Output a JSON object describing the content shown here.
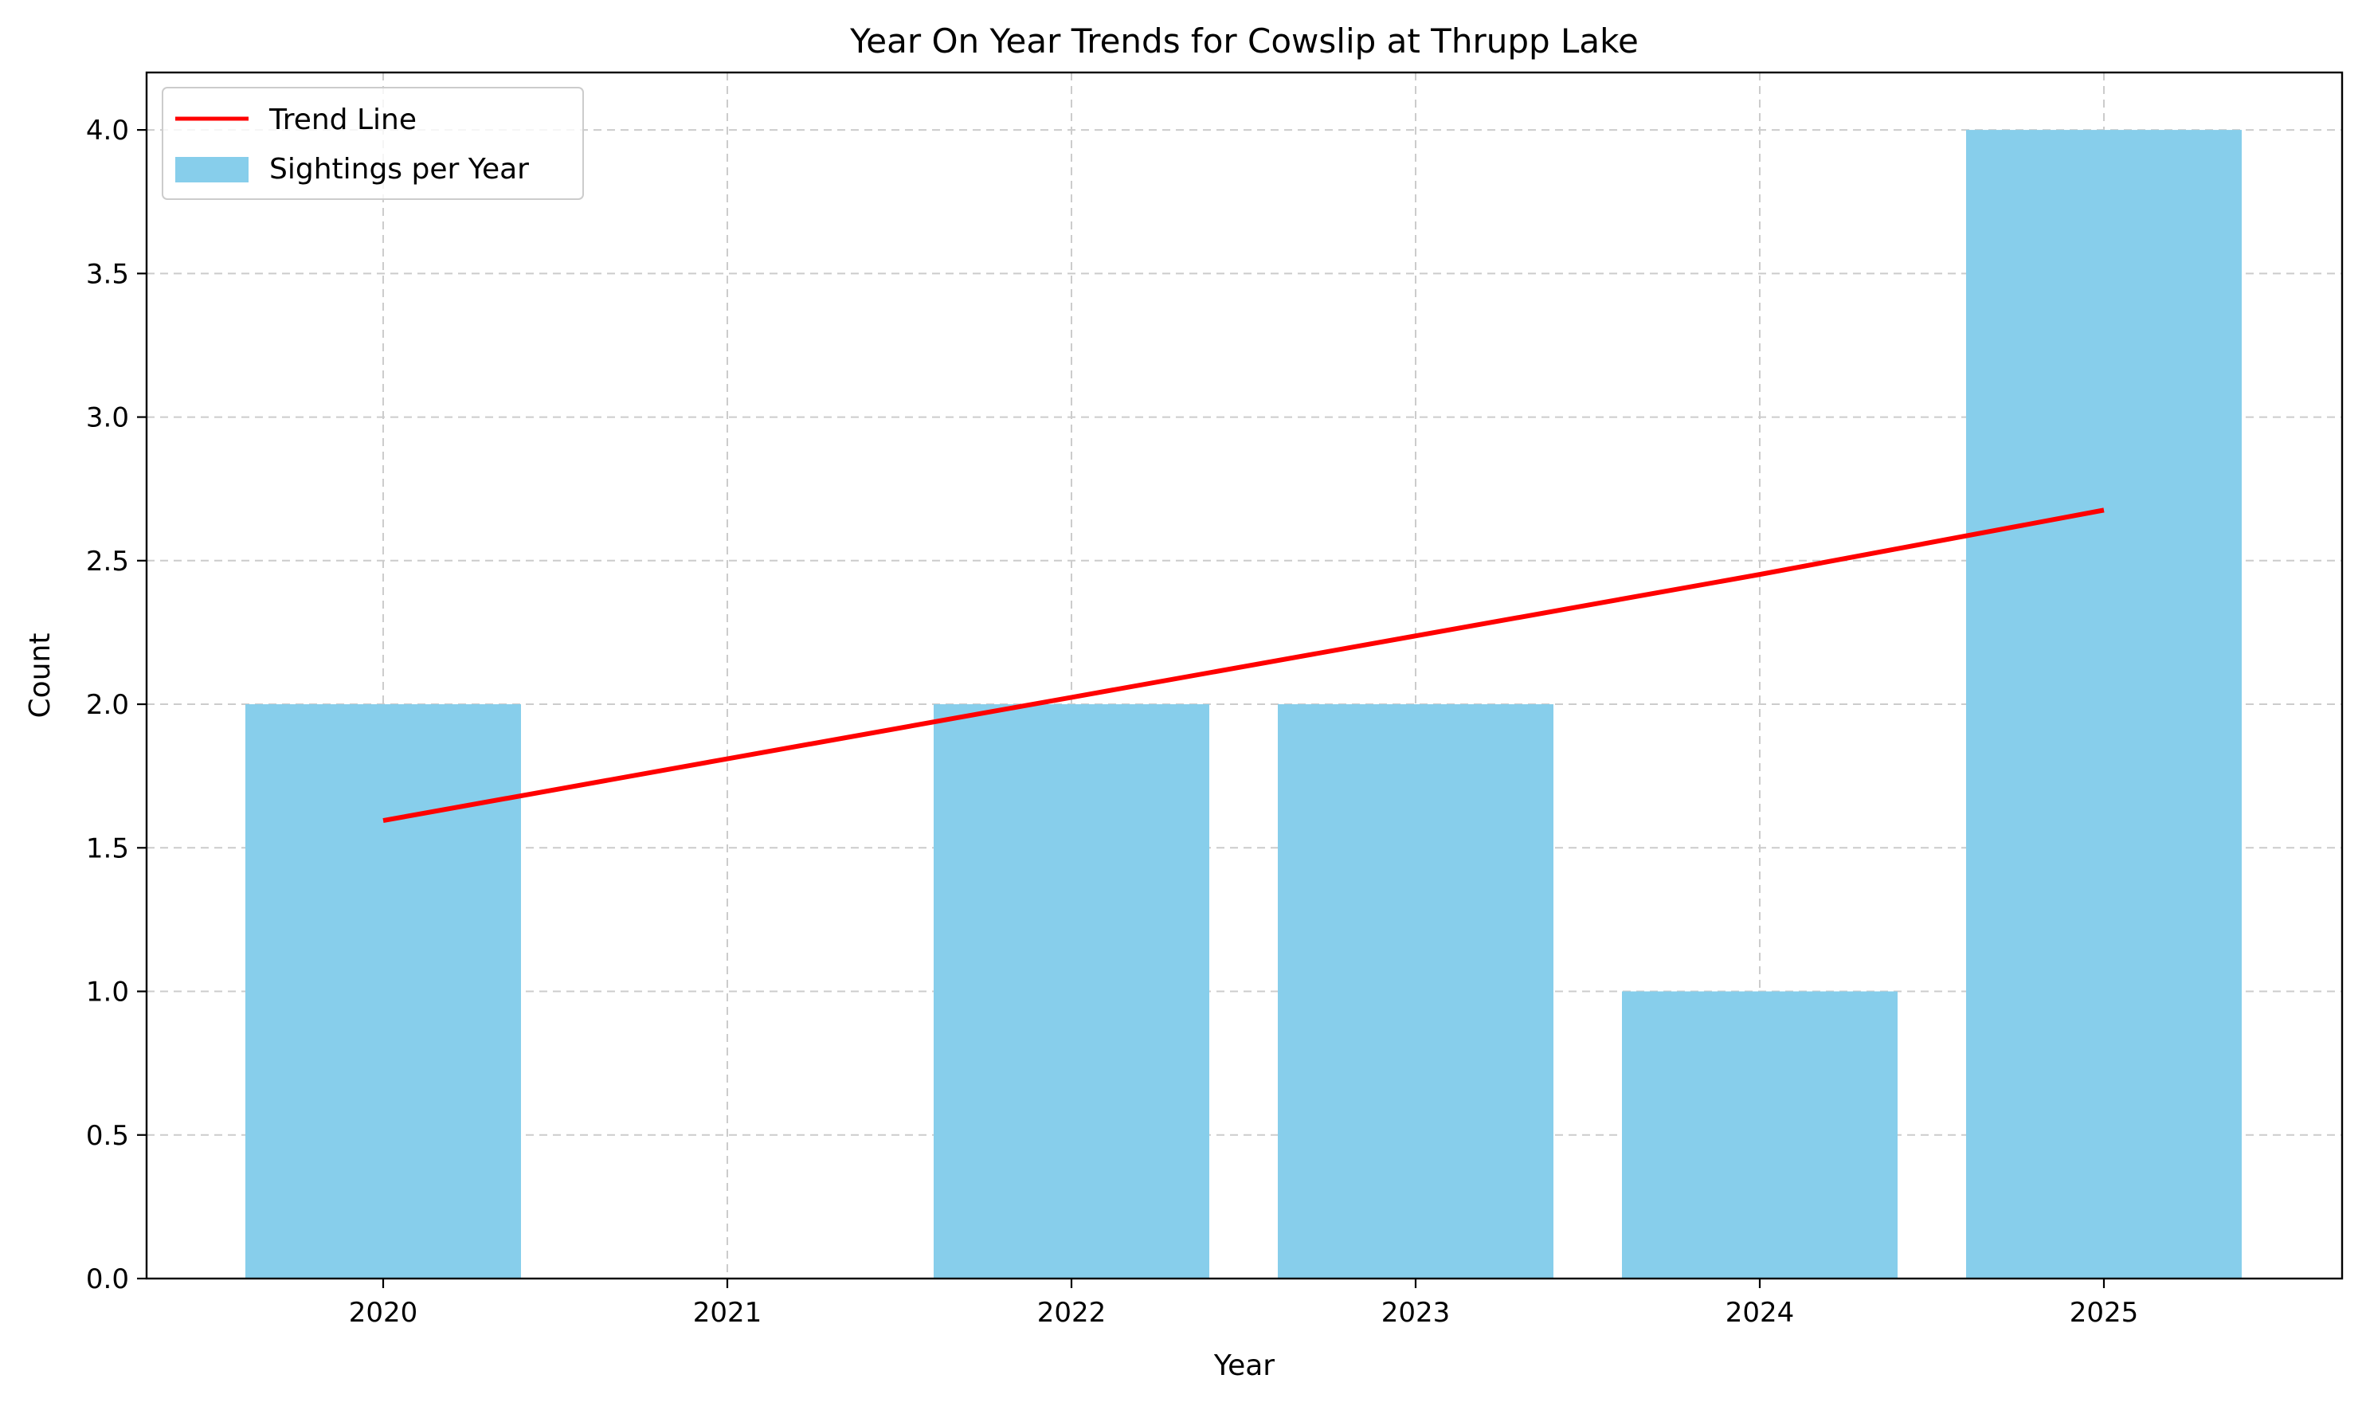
{
  "chart_data": {
    "type": "bar",
    "title": "Year On Year Trends for Cowslip at Thrupp Lake",
    "xlabel": "Year",
    "ylabel": "Count",
    "categories": [
      "2020",
      "2021",
      "2022",
      "2023",
      "2024",
      "2025"
    ],
    "series": [
      {
        "name": "Sightings per Year",
        "type": "bar",
        "color": "#87ceeb",
        "values": [
          2,
          0,
          2,
          2,
          1,
          4
        ]
      },
      {
        "name": "Trend Line",
        "type": "line",
        "color": "#ff0000",
        "values": [
          1.595,
          1.81,
          2.024,
          2.238,
          2.452,
          2.676
        ]
      }
    ],
    "ylim": [
      0,
      4.2
    ],
    "yticks": [
      "0.0",
      "0.5",
      "1.0",
      "1.5",
      "2.0",
      "2.5",
      "3.0",
      "3.5",
      "4.0"
    ],
    "grid": true,
    "legend_position": "upper-left"
  }
}
